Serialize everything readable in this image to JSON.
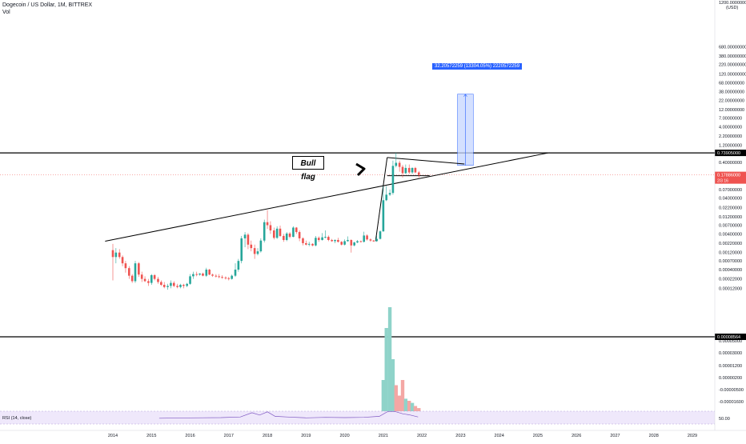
{
  "header": {
    "symbol_line": "Dogecoin / US Dollar, 1M, BITTREX",
    "vol_label": "Vol"
  },
  "annotations": {
    "bull_flag": "Bull flag",
    "measure": "32.20572259 (13304.05%) 2220572259"
  },
  "price_axis": {
    "currency": "USD",
    "ticks": [
      {
        "value": 680,
        "label": "680.00000000"
      },
      {
        "value": 380,
        "label": "380.00000000"
      },
      {
        "value": 220,
        "label": "220.00000000"
      },
      {
        "value": 120,
        "label": "120.00000000"
      },
      {
        "value": 68,
        "label": "68.00000000"
      },
      {
        "value": 38,
        "label": "38.00000000"
      },
      {
        "value": 22,
        "label": "22.00000000"
      },
      {
        "value": 12,
        "label": "12.00000000"
      },
      {
        "value": 7,
        "label": "7.00000000"
      },
      {
        "value": 4,
        "label": "4.00000000"
      },
      {
        "value": 2.2,
        "label": "2.20000000"
      },
      {
        "value": 1.2,
        "label": "1.20000000"
      },
      {
        "value": 0.4,
        "label": "0.40000000"
      },
      {
        "value": 0.07,
        "label": "0.07000000"
      },
      {
        "value": 0.04,
        "label": "0.04000000"
      },
      {
        "value": 0.022,
        "label": "0.02200000"
      },
      {
        "value": 0.012,
        "label": "0.01200000"
      },
      {
        "value": 0.007,
        "label": "0.00700000"
      },
      {
        "value": 0.004,
        "label": "0.00400000"
      },
      {
        "value": 0.0022,
        "label": "0.00220000"
      },
      {
        "value": 0.0012,
        "label": "0.00120000"
      },
      {
        "value": 0.0007,
        "label": "0.00070000"
      },
      {
        "value": 0.0004,
        "label": "0.00040000"
      },
      {
        "value": 0.00022,
        "label": "0.00022000"
      },
      {
        "value": 0.00012,
        "label": "0.00012000"
      },
      {
        "value": 5e-05,
        "label": "0.00005000"
      },
      {
        "value": 3e-05,
        "label": "0.00003000"
      },
      {
        "value": 1.2e-05,
        "label": "0.00001200"
      },
      {
        "value": 2e-06,
        "label": "0.00000200"
      },
      {
        "value": -5e-06,
        "label": "-0.00000500"
      },
      {
        "value": -1.6e-05,
        "label": "-0.00001600"
      }
    ],
    "top_partial_label": "1200.00000000",
    "rsi_label": "50.00",
    "badges": [
      {
        "label": "0.73905000",
        "kind": "line"
      },
      {
        "label": "0.17886000",
        "sub": "2/3 16",
        "kind": "price"
      },
      {
        "label": "0.00008564",
        "kind": "line"
      }
    ],
    "ghost_label": "0.22000000"
  },
  "chart_data": {
    "type": "candlestick",
    "symbol": "Dogecoin / US Dollar",
    "interval": "1M",
    "exchange": "BITTREX",
    "scale": "log",
    "x_ticks": [
      "2014",
      "2015",
      "2016",
      "2017",
      "2018",
      "2019",
      "2020",
      "2021",
      "2022",
      "2023",
      "2024",
      "2025",
      "2026",
      "2027",
      "2028",
      "2029"
    ],
    "candles": [
      {
        "t": 2014.0,
        "o": 0.0014,
        "h": 0.0021,
        "l": 0.0002,
        "c": 0.0009
      },
      {
        "t": 2014.08,
        "o": 0.0009,
        "h": 0.0016,
        "l": 0.0006,
        "c": 0.0012
      },
      {
        "t": 2014.17,
        "o": 0.0012,
        "h": 0.0015,
        "l": 0.0008,
        "c": 0.0009
      },
      {
        "t": 2014.25,
        "o": 0.0009,
        "h": 0.001,
        "l": 0.0005,
        "c": 0.0006
      },
      {
        "t": 2014.33,
        "o": 0.0006,
        "h": 0.0007,
        "l": 0.00033,
        "c": 0.00044
      },
      {
        "t": 2014.42,
        "o": 0.00044,
        "h": 0.0005,
        "l": 0.00022,
        "c": 0.00027
      },
      {
        "t": 2014.5,
        "o": 0.00027,
        "h": 0.0003,
        "l": 0.00017,
        "c": 0.00019
      },
      {
        "t": 2014.58,
        "o": 0.00019,
        "h": 0.0007,
        "l": 0.00017,
        "c": 0.0006
      },
      {
        "t": 2014.67,
        "o": 0.0006,
        "h": 0.00065,
        "l": 0.00025,
        "c": 0.00029
      },
      {
        "t": 2014.75,
        "o": 0.00029,
        "h": 0.00035,
        "l": 0.00018,
        "c": 0.00022
      },
      {
        "t": 2014.83,
        "o": 0.00022,
        "h": 0.00026,
        "l": 0.00018,
        "c": 0.00019
      },
      {
        "t": 2014.92,
        "o": 0.00019,
        "h": 0.00022,
        "l": 0.00014,
        "c": 0.00017
      },
      {
        "t": 2015.0,
        "o": 0.00017,
        "h": 0.0003,
        "l": 0.00015,
        "c": 0.00028
      },
      {
        "t": 2015.08,
        "o": 0.00028,
        "h": 0.0003,
        "l": 0.0002,
        "c": 0.00022
      },
      {
        "t": 2015.17,
        "o": 0.00022,
        "h": 0.00025,
        "l": 0.00016,
        "c": 0.00018
      },
      {
        "t": 2015.25,
        "o": 0.00018,
        "h": 0.0002,
        "l": 0.00014,
        "c": 0.00015
      },
      {
        "t": 2015.33,
        "o": 0.00015,
        "h": 0.00018,
        "l": 0.00012,
        "c": 0.00013
      },
      {
        "t": 2015.42,
        "o": 0.00013,
        "h": 0.00016,
        "l": 0.00011,
        "c": 0.00014
      },
      {
        "t": 2015.5,
        "o": 0.00014,
        "h": 0.0002,
        "l": 0.00012,
        "c": 0.00017
      },
      {
        "t": 2015.58,
        "o": 0.00017,
        "h": 0.00019,
        "l": 0.00013,
        "c": 0.00014
      },
      {
        "t": 2015.67,
        "o": 0.00014,
        "h": 0.00016,
        "l": 0.00012,
        "c": 0.00013
      },
      {
        "t": 2015.75,
        "o": 0.00013,
        "h": 0.00016,
        "l": 0.00012,
        "c": 0.00015
      },
      {
        "t": 2015.83,
        "o": 0.00015,
        "h": 0.00016,
        "l": 0.00012,
        "c": 0.00014
      },
      {
        "t": 2015.92,
        "o": 0.00014,
        "h": 0.00017,
        "l": 0.00013,
        "c": 0.00016
      },
      {
        "t": 2016.0,
        "o": 0.00016,
        "h": 0.0003,
        "l": 0.00015,
        "c": 0.00026
      },
      {
        "t": 2016.08,
        "o": 0.00026,
        "h": 0.00035,
        "l": 0.00022,
        "c": 0.0003
      },
      {
        "t": 2016.17,
        "o": 0.0003,
        "h": 0.00035,
        "l": 0.00026,
        "c": 0.00029
      },
      {
        "t": 2016.25,
        "o": 0.00029,
        "h": 0.00032,
        "l": 0.00027,
        "c": 0.00031
      },
      {
        "t": 2016.33,
        "o": 0.00031,
        "h": 0.00033,
        "l": 0.00026,
        "c": 0.00027
      },
      {
        "t": 2016.42,
        "o": 0.00027,
        "h": 0.00045,
        "l": 0.00025,
        "c": 0.0004
      },
      {
        "t": 2016.5,
        "o": 0.0004,
        "h": 0.00042,
        "l": 0.00028,
        "c": 0.00029
      },
      {
        "t": 2016.58,
        "o": 0.00029,
        "h": 0.00031,
        "l": 0.00025,
        "c": 0.00027
      },
      {
        "t": 2016.67,
        "o": 0.00027,
        "h": 0.0003,
        "l": 0.00024,
        "c": 0.00026
      },
      {
        "t": 2016.75,
        "o": 0.00026,
        "h": 0.0003,
        "l": 0.00023,
        "c": 0.00025
      },
      {
        "t": 2016.83,
        "o": 0.00025,
        "h": 0.00028,
        "l": 0.00022,
        "c": 0.00024
      },
      {
        "t": 2016.92,
        "o": 0.00024,
        "h": 0.00026,
        "l": 0.00021,
        "c": 0.00023
      },
      {
        "t": 2017.0,
        "o": 0.00023,
        "h": 0.00025,
        "l": 0.0002,
        "c": 0.00022
      },
      {
        "t": 2017.08,
        "o": 0.00022,
        "h": 0.00029,
        "l": 0.00021,
        "c": 0.00027
      },
      {
        "t": 2017.17,
        "o": 0.00027,
        "h": 0.0006,
        "l": 0.00025,
        "c": 0.0004
      },
      {
        "t": 2017.25,
        "o": 0.0004,
        "h": 0.0008,
        "l": 0.00035,
        "c": 0.0007
      },
      {
        "t": 2017.33,
        "o": 0.0007,
        "h": 0.0035,
        "l": 0.0006,
        "c": 0.003
      },
      {
        "t": 2017.42,
        "o": 0.003,
        "h": 0.0045,
        "l": 0.0017,
        "c": 0.0038
      },
      {
        "t": 2017.5,
        "o": 0.0038,
        "h": 0.0042,
        "l": 0.0015,
        "c": 0.002
      },
      {
        "t": 2017.58,
        "o": 0.002,
        "h": 0.0026,
        "l": 0.0013,
        "c": 0.0016
      },
      {
        "t": 2017.67,
        "o": 0.0016,
        "h": 0.002,
        "l": 0.0008,
        "c": 0.0011
      },
      {
        "t": 2017.75,
        "o": 0.0011,
        "h": 0.0016,
        "l": 0.001,
        "c": 0.0013
      },
      {
        "t": 2017.83,
        "o": 0.0013,
        "h": 0.003,
        "l": 0.0012,
        "c": 0.0026
      },
      {
        "t": 2017.92,
        "o": 0.0026,
        "h": 0.01,
        "l": 0.0023,
        "c": 0.0085
      },
      {
        "t": 2018.0,
        "o": 0.0085,
        "h": 0.0185,
        "l": 0.0055,
        "c": 0.007
      },
      {
        "t": 2018.08,
        "o": 0.007,
        "h": 0.009,
        "l": 0.004,
        "c": 0.005
      },
      {
        "t": 2018.17,
        "o": 0.005,
        "h": 0.006,
        "l": 0.0028,
        "c": 0.0031
      },
      {
        "t": 2018.25,
        "o": 0.0031,
        "h": 0.0065,
        "l": 0.0029,
        "c": 0.0056
      },
      {
        "t": 2018.33,
        "o": 0.0056,
        "h": 0.0068,
        "l": 0.0033,
        "c": 0.0035
      },
      {
        "t": 2018.42,
        "o": 0.0035,
        "h": 0.004,
        "l": 0.0024,
        "c": 0.0027
      },
      {
        "t": 2018.5,
        "o": 0.0027,
        "h": 0.0045,
        "l": 0.0025,
        "c": 0.0041
      },
      {
        "t": 2018.58,
        "o": 0.0041,
        "h": 0.0045,
        "l": 0.003,
        "c": 0.0033
      },
      {
        "t": 2018.67,
        "o": 0.0033,
        "h": 0.0065,
        "l": 0.0032,
        "c": 0.006
      },
      {
        "t": 2018.75,
        "o": 0.006,
        "h": 0.0062,
        "l": 0.004,
        "c": 0.0045
      },
      {
        "t": 2018.83,
        "o": 0.0045,
        "h": 0.005,
        "l": 0.0025,
        "c": 0.003
      },
      {
        "t": 2018.92,
        "o": 0.003,
        "h": 0.0032,
        "l": 0.0019,
        "c": 0.0022
      },
      {
        "t": 2019.0,
        "o": 0.0022,
        "h": 0.0026,
        "l": 0.0019,
        "c": 0.002
      },
      {
        "t": 2019.08,
        "o": 0.002,
        "h": 0.0024,
        "l": 0.0018,
        "c": 0.0021
      },
      {
        "t": 2019.17,
        "o": 0.0021,
        "h": 0.0022,
        "l": 0.0018,
        "c": 0.0019
      },
      {
        "t": 2019.25,
        "o": 0.0019,
        "h": 0.0035,
        "l": 0.0018,
        "c": 0.0031
      },
      {
        "t": 2019.33,
        "o": 0.0031,
        "h": 0.0034,
        "l": 0.0024,
        "c": 0.0027
      },
      {
        "t": 2019.42,
        "o": 0.0027,
        "h": 0.0042,
        "l": 0.0026,
        "c": 0.0032
      },
      {
        "t": 2019.5,
        "o": 0.0032,
        "h": 0.005,
        "l": 0.003,
        "c": 0.0033
      },
      {
        "t": 2019.58,
        "o": 0.0033,
        "h": 0.0036,
        "l": 0.0025,
        "c": 0.0027
      },
      {
        "t": 2019.67,
        "o": 0.0027,
        "h": 0.0029,
        "l": 0.0024,
        "c": 0.0025
      },
      {
        "t": 2019.75,
        "o": 0.0025,
        "h": 0.0028,
        "l": 0.0022,
        "c": 0.0027
      },
      {
        "t": 2019.83,
        "o": 0.0027,
        "h": 0.0031,
        "l": 0.0023,
        "c": 0.0024
      },
      {
        "t": 2019.92,
        "o": 0.0024,
        "h": 0.0025,
        "l": 0.0019,
        "c": 0.002
      },
      {
        "t": 2020.0,
        "o": 0.002,
        "h": 0.0028,
        "l": 0.0019,
        "c": 0.0025
      },
      {
        "t": 2020.08,
        "o": 0.0025,
        "h": 0.0034,
        "l": 0.0024,
        "c": 0.0027
      },
      {
        "t": 2020.17,
        "o": 0.0027,
        "h": 0.0028,
        "l": 0.0012,
        "c": 0.0019
      },
      {
        "t": 2020.25,
        "o": 0.0019,
        "h": 0.0024,
        "l": 0.0018,
        "c": 0.0023
      },
      {
        "t": 2020.33,
        "o": 0.0023,
        "h": 0.0027,
        "l": 0.0022,
        "c": 0.0025
      },
      {
        "t": 2020.42,
        "o": 0.0025,
        "h": 0.0026,
        "l": 0.0023,
        "c": 0.0024
      },
      {
        "t": 2020.5,
        "o": 0.0024,
        "h": 0.0046,
        "l": 0.0023,
        "c": 0.0036
      },
      {
        "t": 2020.58,
        "o": 0.0036,
        "h": 0.0039,
        "l": 0.0026,
        "c": 0.0028
      },
      {
        "t": 2020.67,
        "o": 0.0028,
        "h": 0.003,
        "l": 0.0024,
        "c": 0.0026
      },
      {
        "t": 2020.75,
        "o": 0.0026,
        "h": 0.0027,
        "l": 0.0024,
        "c": 0.0025
      },
      {
        "t": 2020.83,
        "o": 0.0025,
        "h": 0.0036,
        "l": 0.0024,
        "c": 0.0029
      },
      {
        "t": 2020.92,
        "o": 0.0029,
        "h": 0.005,
        "l": 0.0028,
        "c": 0.0047
      },
      {
        "t": 2021.0,
        "o": 0.0047,
        "h": 0.087,
        "l": 0.0046,
        "c": 0.035
      },
      {
        "t": 2021.08,
        "o": 0.035,
        "h": 0.087,
        "l": 0.033,
        "c": 0.05
      },
      {
        "t": 2021.17,
        "o": 0.05,
        "h": 0.07,
        "l": 0.046,
        "c": 0.056
      },
      {
        "t": 2021.25,
        "o": 0.056,
        "h": 0.45,
        "l": 0.05,
        "c": 0.32
      },
      {
        "t": 2021.33,
        "o": 0.32,
        "h": 0.739,
        "l": 0.29,
        "c": 0.39
      },
      {
        "t": 2021.42,
        "o": 0.39,
        "h": 0.45,
        "l": 0.22,
        "c": 0.3
      },
      {
        "t": 2021.5,
        "o": 0.3,
        "h": 0.34,
        "l": 0.15,
        "c": 0.2
      },
      {
        "t": 2021.58,
        "o": 0.2,
        "h": 0.35,
        "l": 0.19,
        "c": 0.28
      },
      {
        "t": 2021.67,
        "o": 0.28,
        "h": 0.35,
        "l": 0.19,
        "c": 0.21
      },
      {
        "t": 2021.75,
        "o": 0.21,
        "h": 0.29,
        "l": 0.19,
        "c": 0.28
      },
      {
        "t": 2021.83,
        "o": 0.28,
        "h": 0.3,
        "l": 0.2,
        "c": 0.21
      },
      {
        "t": 2021.92,
        "o": 0.21,
        "h": 0.23,
        "l": 0.15,
        "c": 0.1789
      }
    ],
    "volume": [
      {
        "t": 2021.0,
        "v": 0.3,
        "up": true
      },
      {
        "t": 2021.08,
        "v": 0.8,
        "up": true
      },
      {
        "t": 2021.17,
        "v": 1.0,
        "up": true
      },
      {
        "t": 2021.25,
        "v": 0.5,
        "up": true
      },
      {
        "t": 2021.33,
        "v": 0.25,
        "up": false
      },
      {
        "t": 2021.42,
        "v": 0.15,
        "up": false
      },
      {
        "t": 2021.5,
        "v": 0.3,
        "up": false
      },
      {
        "t": 2021.58,
        "v": 0.12,
        "up": true
      },
      {
        "t": 2021.67,
        "v": 0.1,
        "up": false
      },
      {
        "t": 2021.75,
        "v": 0.08,
        "up": true
      },
      {
        "t": 2021.83,
        "v": 0.05,
        "up": false
      },
      {
        "t": 2021.92,
        "v": 0.03,
        "up": false
      }
    ],
    "horizontal_levels": [
      0.73905,
      8.564e-05
    ],
    "current_price": 0.17886,
    "trendline": [
      {
        "t": 2013.8,
        "p": 0.0025
      },
      {
        "t": 2025.3,
        "p": 0.75
      }
    ],
    "flag_lines": [
      [
        {
          "t": 2021.1,
          "p": 0.55
        },
        {
          "t": 2023.1,
          "p": 0.36
        }
      ],
      [
        {
          "t": 2021.1,
          "p": 0.17
        },
        {
          "t": 2022.2,
          "p": 0.17
        }
      ],
      [
        {
          "t": 2020.8,
          "p": 0.0025
        },
        {
          "t": 2021.1,
          "p": 0.55
        }
      ]
    ],
    "measure_box": {
      "t0": 2022.92,
      "t1": 2023.33,
      "p0": 0.33,
      "p1": 32.5
    },
    "rsi": {
      "label": "RSI (14, close)",
      "points": [
        {
          "t": 2015.2,
          "v": 0.45
        },
        {
          "t": 2016.0,
          "v": 0.48
        },
        {
          "t": 2016.8,
          "v": 0.5
        },
        {
          "t": 2017.3,
          "v": 0.55
        },
        {
          "t": 2017.6,
          "v": 0.88
        },
        {
          "t": 2017.8,
          "v": 0.7
        },
        {
          "t": 2018.0,
          "v": 0.95
        },
        {
          "t": 2018.2,
          "v": 0.6
        },
        {
          "t": 2018.5,
          "v": 0.55
        },
        {
          "t": 2019.0,
          "v": 0.48
        },
        {
          "t": 2019.5,
          "v": 0.52
        },
        {
          "t": 2020.0,
          "v": 0.5
        },
        {
          "t": 2020.5,
          "v": 0.52
        },
        {
          "t": 2020.9,
          "v": 0.6
        },
        {
          "t": 2021.1,
          "v": 0.95
        },
        {
          "t": 2021.3,
          "v": 0.98
        },
        {
          "t": 2021.5,
          "v": 0.8
        },
        {
          "t": 2021.7,
          "v": 0.7
        },
        {
          "t": 2021.9,
          "v": 0.55
        }
      ]
    },
    "colors": {
      "up": "#26a69a",
      "down": "#ef5350",
      "volume_up": "#8fd3c9",
      "volume_down": "#f4a7a4",
      "measure_fill": "#c5d6ff",
      "measure_stroke": "#2962ff",
      "rsi_line": "#7e57c2",
      "rsi_band": "#efe8fb",
      "price_badge": "#ef5350"
    }
  }
}
